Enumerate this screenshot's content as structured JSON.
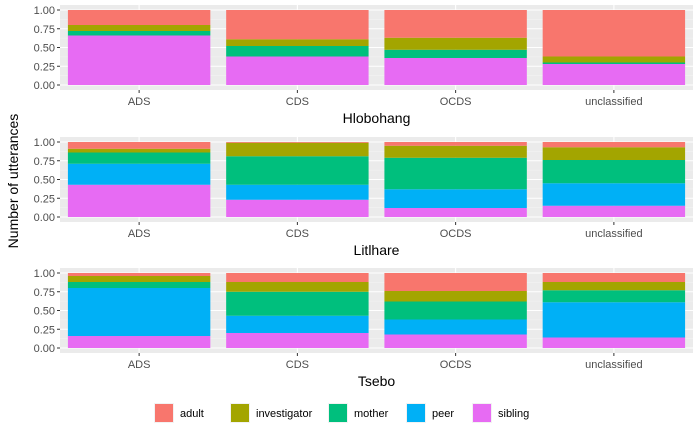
{
  "chart_data": {
    "type": "bar",
    "stacked": true,
    "normalized": true,
    "ylabel": "Number of utterances",
    "categories": [
      "ADS",
      "CDS",
      "OCDS",
      "unclassified"
    ],
    "yticks": [
      "0.00",
      "0.25",
      "0.50",
      "0.75",
      "1.00"
    ],
    "ylim": [
      0,
      1
    ],
    "legend": {
      "position": "bottom",
      "entries": [
        "adult",
        "investigator",
        "mother",
        "peer",
        "sibling"
      ]
    },
    "colors": {
      "adult": "#F8766D",
      "investigator": "#A3A500",
      "mother": "#00BF7D",
      "peer": "#00B0F6",
      "sibling": "#E76BF3"
    },
    "stack_order": [
      "sibling",
      "peer",
      "mother",
      "investigator",
      "adult"
    ],
    "grid": true,
    "panels": [
      {
        "xlabel": "Hlobohang",
        "values": {
          "ADS": {
            "sibling": 0.66,
            "peer": 0.0,
            "mother": 0.06,
            "investigator": 0.08,
            "adult": 0.2
          },
          "CDS": {
            "sibling": 0.38,
            "peer": 0.0,
            "mother": 0.14,
            "investigator": 0.09,
            "adult": 0.39
          },
          "OCDS": {
            "sibling": 0.36,
            "peer": 0.0,
            "mother": 0.11,
            "investigator": 0.16,
            "adult": 0.37
          },
          "unclassified": {
            "sibling": 0.28,
            "peer": 0.0,
            "mother": 0.02,
            "investigator": 0.08,
            "adult": 0.62
          }
        }
      },
      {
        "xlabel": "Litlhare",
        "values": {
          "ADS": {
            "sibling": 0.43,
            "peer": 0.28,
            "mother": 0.15,
            "investigator": 0.05,
            "adult": 0.09
          },
          "CDS": {
            "sibling": 0.23,
            "peer": 0.2,
            "mother": 0.38,
            "investigator": 0.18,
            "adult": 0.01
          },
          "OCDS": {
            "sibling": 0.12,
            "peer": 0.25,
            "mother": 0.42,
            "investigator": 0.16,
            "adult": 0.05
          },
          "unclassified": {
            "sibling": 0.15,
            "peer": 0.3,
            "mother": 0.31,
            "investigator": 0.17,
            "adult": 0.07
          }
        }
      },
      {
        "xlabel": "Tsebo",
        "values": {
          "ADS": {
            "sibling": 0.16,
            "peer": 0.64,
            "mother": 0.08,
            "investigator": 0.08,
            "adult": 0.04
          },
          "CDS": {
            "sibling": 0.2,
            "peer": 0.23,
            "mother": 0.32,
            "investigator": 0.13,
            "adult": 0.12
          },
          "OCDS": {
            "sibling": 0.18,
            "peer": 0.2,
            "mother": 0.24,
            "investigator": 0.14,
            "adult": 0.24
          },
          "unclassified": {
            "sibling": 0.14,
            "peer": 0.47,
            "mother": 0.16,
            "investigator": 0.11,
            "adult": 0.12
          }
        }
      }
    ]
  }
}
